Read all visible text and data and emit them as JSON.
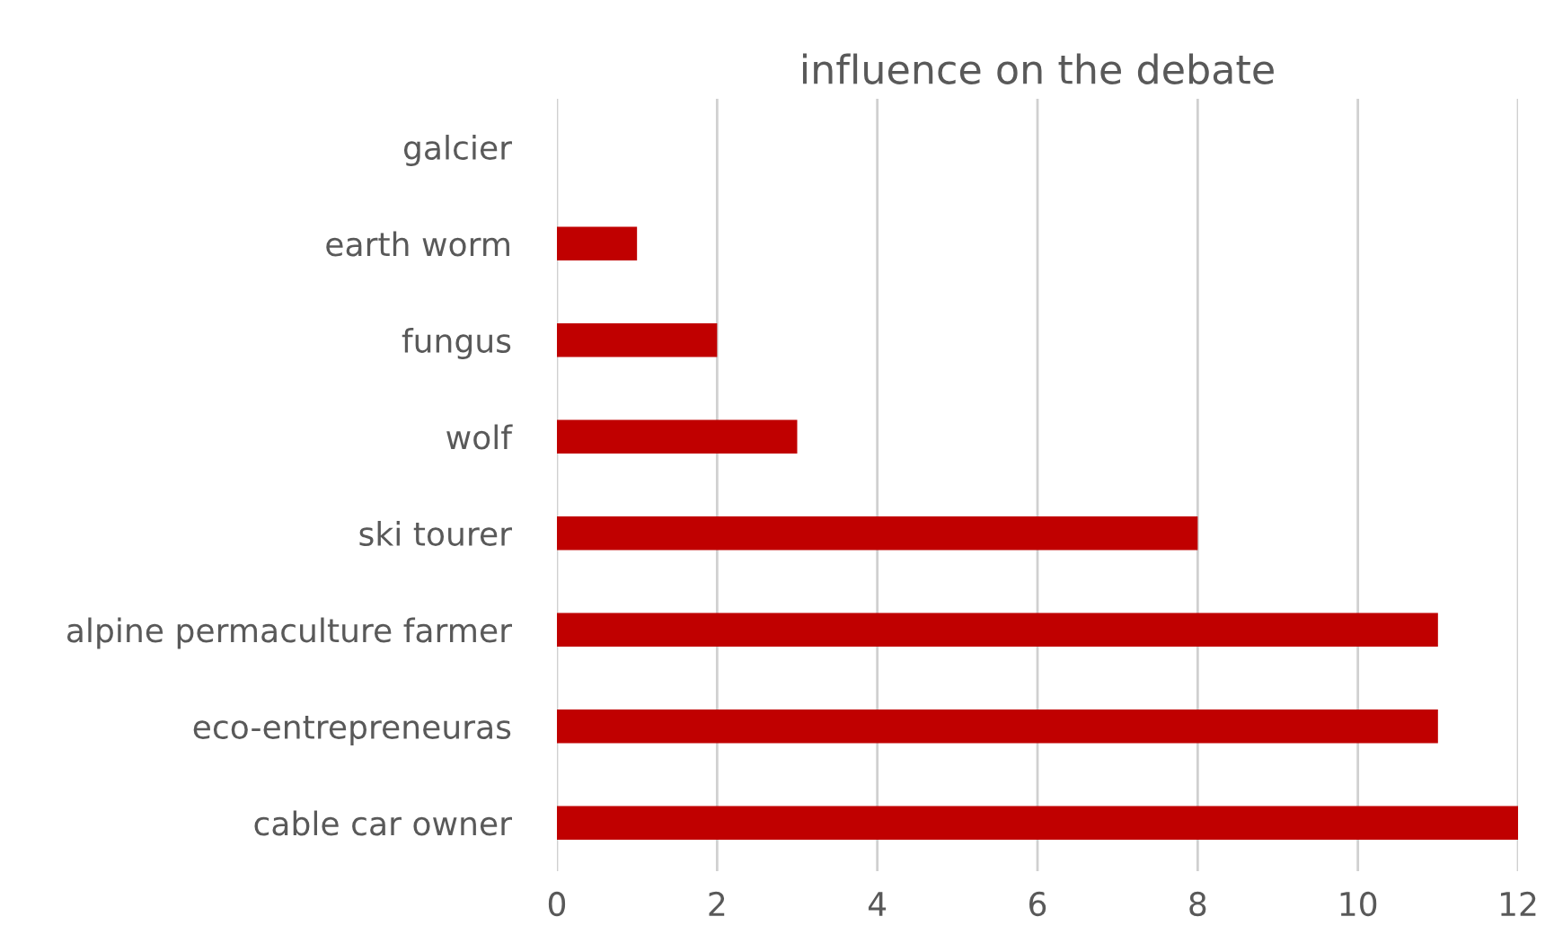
{
  "chart_data": {
    "type": "bar",
    "orientation": "horizontal",
    "title": "influence on the debate",
    "categories": [
      "galcier",
      "earth worm",
      "fungus",
      "wolf",
      "ski tourer",
      "alpine permaculture farmer",
      "eco-entrepreneuras",
      "cable car owner"
    ],
    "values": [
      0,
      1,
      2,
      3,
      8,
      11,
      11,
      12
    ],
    "color": "#c00000",
    "xlim": [
      0,
      12
    ],
    "xticks": [
      0,
      2,
      4,
      6,
      8,
      10,
      12
    ],
    "grid": "x",
    "legend": false
  }
}
